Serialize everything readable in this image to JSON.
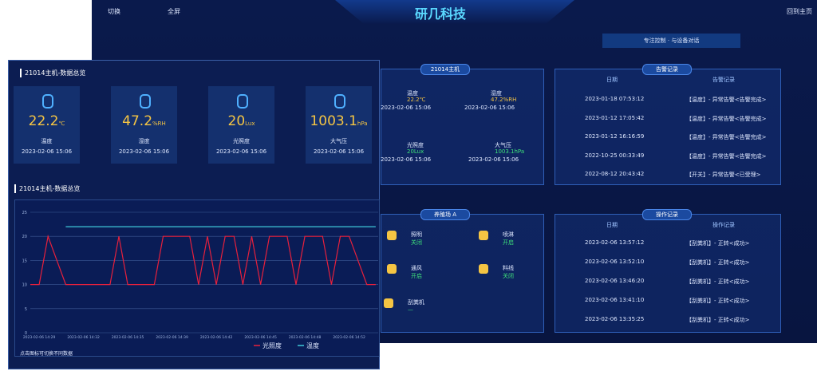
{
  "header": {
    "switch": "切换",
    "fullscreen": "全屏",
    "title": "研几科技",
    "home": "回到主页"
  },
  "slogan": "专注控制 · 与设备对话",
  "host_panel": {
    "title": "21014主机",
    "items": [
      {
        "name": "温度",
        "value": "22.2℃",
        "time": "2023-02-06 15:06"
      },
      {
        "name": "湿度",
        "value": "47.2%RH",
        "time": "2023-02-06 15:06"
      },
      {
        "name": "光照度",
        "value": "20Lux",
        "time": "2023-02-06 15:06"
      },
      {
        "name": "大气压",
        "value": "1003.1hPa",
        "time": "2023-02-06 15:06"
      }
    ]
  },
  "alarm": {
    "title": "告警记录",
    "columns": [
      "日期",
      "告警记录"
    ],
    "rows": [
      [
        "2023-01-18 07:53:12",
        "【温度】- 异常告警<告警完成>"
      ],
      [
        "2023-01-12 17:05:42",
        "【温度】- 异常告警<告警完成>"
      ],
      [
        "2023-01-12 16:16:59",
        "【温度】- 异常告警<告警完成>"
      ],
      [
        "2022-10-25 00:33:49",
        "【温度】- 异常告警<告警完成>"
      ],
      [
        "2022-08-12 20:43:42",
        "【开关】- 异常告警<已受理>"
      ]
    ]
  },
  "farm": {
    "title": "养殖场 A",
    "devices": [
      {
        "name": "照明",
        "state": "关闭"
      },
      {
        "name": "喷淋",
        "state": "开启"
      },
      {
        "name": "通风",
        "state": "开启"
      },
      {
        "name": "料线",
        "state": "关闭"
      },
      {
        "name": "刮粪机",
        "state": "—"
      }
    ]
  },
  "operations": {
    "title": "操作记录",
    "columns": [
      "日期",
      "操作记录"
    ],
    "rows": [
      [
        "2023-02-06 13:57:12",
        "【刮粪机】- 正转<成功>"
      ],
      [
        "2023-02-06 13:52:10",
        "【刮粪机】- 正转<成功>"
      ],
      [
        "2023-02-06 13:46:20",
        "【刮粪机】- 正转<成功>"
      ],
      [
        "2023-02-06 13:41:10",
        "【刮粪机】- 正转<成功>"
      ],
      [
        "2023-02-06 13:35:25",
        "【刮粪机】- 正转<成功>"
      ]
    ]
  },
  "overview": {
    "title": "21014主机-数据总览",
    "cards": [
      {
        "value": 22.2,
        "unit": "℃",
        "name": "温度",
        "time": "2023-02-06 15:06"
      },
      {
        "value": 47.2,
        "unit": "%RH",
        "name": "湿度",
        "time": "2023-02-06 15:06"
      },
      {
        "value": 20,
        "unit": "Lux",
        "name": "光照度",
        "time": "2023-02-06 15:06"
      },
      {
        "value": 1003.1,
        "unit": "hPa",
        "name": "大气压",
        "time": "2023-02-06 15:06"
      }
    ],
    "chart_title": "21014主机-数据总览",
    "note": "点击图标可切换不同数据"
  },
  "chart_data": {
    "type": "line",
    "categories": [
      null,
      "2023-02-06 14:29",
      null,
      null,
      null,
      null,
      "2023-02-06 14:32",
      null,
      null,
      null,
      null,
      "2023-02-06 14:35",
      null,
      null,
      null,
      null,
      "2023-02-06 14:39",
      null,
      null,
      null,
      null,
      "2023-02-06 14:42",
      null,
      null,
      null,
      null,
      "2023-02-06 14:45",
      null,
      null,
      null,
      null,
      "2023-02-06 14:48",
      null,
      null,
      null,
      null,
      "2023-02-06 14:52",
      null,
      null,
      null
    ],
    "series": [
      {
        "name": "光照度",
        "color": "#e8203c",
        "values": [
          10,
          10,
          20,
          15,
          10,
          10,
          10,
          10,
          10,
          10,
          20,
          10,
          10,
          10,
          10,
          20,
          20,
          20,
          20,
          10,
          20,
          10,
          20,
          20,
          10,
          20,
          10,
          20,
          20,
          20,
          10,
          20,
          20,
          20,
          10,
          20,
          20,
          15,
          10,
          10
        ]
      },
      {
        "name": "温度",
        "color": "#3ec8d8",
        "values": [
          null,
          null,
          null,
          null,
          22,
          22,
          22,
          22,
          22,
          22,
          22,
          22,
          22,
          22,
          22,
          22,
          22,
          22,
          22,
          22,
          22,
          22,
          22,
          22,
          22,
          22,
          22,
          22,
          22,
          22,
          22,
          22,
          22,
          22,
          22,
          22,
          22,
          22,
          22,
          22
        ]
      }
    ],
    "ylim": [
      0,
      25
    ],
    "yticks": [
      0,
      5,
      10,
      15,
      20,
      25
    ],
    "grid": true
  }
}
